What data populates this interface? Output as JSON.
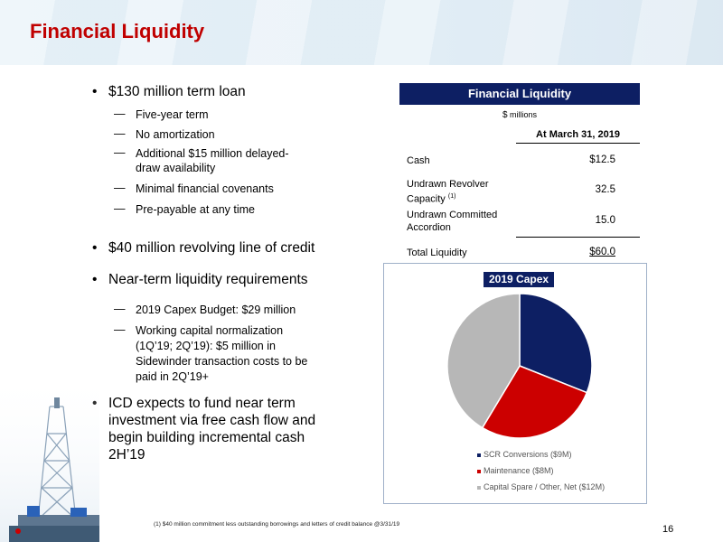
{
  "page": {
    "title": "Financial Liquidity",
    "page_number": "16",
    "footnote": "(1)  $40 million commitment less outstanding borrowings and letters of credit balance @3/31/19"
  },
  "bullets": {
    "term_loan": "$130 million term loan",
    "term_loan_subs": [
      "Five-year term",
      "No amortization",
      "Additional $15 million delayed-",
      "draw availability",
      "Minimal financial covenants",
      "Pre-payable at any time"
    ],
    "revolver": "$40 million revolving line of credit",
    "near_term": "Near-term liquidity requirements",
    "near_term_subs": [
      "2019 Capex Budget:  $29 million",
      "Working capital normalization",
      "(1Q’19; 2Q’19):  $5 million in",
      "Sidewinder transaction costs to be",
      "paid in 2Q’19+"
    ],
    "icd_lines": [
      "ICD expects to fund near term",
      "investment via free cash flow and",
      "begin building incremental cash",
      "2H’19"
    ]
  },
  "table": {
    "header": "Financial Liquidity",
    "units_symbol": "$",
    "units": "millions",
    "column_header": "At March 31, 2019",
    "rows": [
      {
        "label_lines": [
          "Cash"
        ],
        "value": "$12.5"
      },
      {
        "label_lines": [
          "Undrawn Revolver",
          "Capacity"
        ],
        "footnote_ref": "(1)",
        "value": "32.5"
      },
      {
        "label_lines": [
          "Undrawn Committed",
          "Accordion"
        ],
        "value": "15.0"
      },
      {
        "label_lines": [
          "Total Liquidity"
        ],
        "value": "$60.0"
      }
    ]
  },
  "chart_data": {
    "type": "pie",
    "title": "2019 Capex",
    "categories": [
      "SCR Conversions ($9M)",
      "Maintenance ($8M)",
      "Capital Spare / Other, Net ($12M)"
    ],
    "values": [
      9,
      8,
      12
    ],
    "colors": [
      "#0d1f63",
      "#cc0000",
      "#b7b7b7"
    ],
    "legend_position": "bottom"
  }
}
